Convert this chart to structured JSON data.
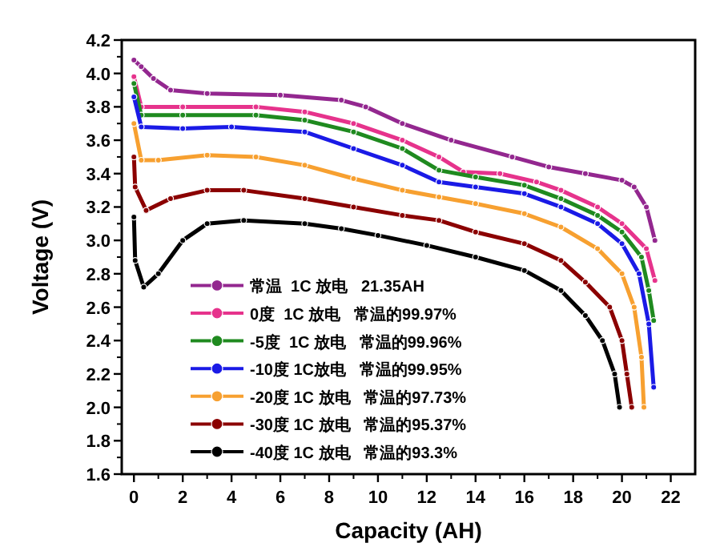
{
  "chart_data": {
    "type": "line",
    "xlabel": "Capacity (AH)",
    "ylabel": "Voltage (V)",
    "xlim": [
      -0.5,
      23
    ],
    "ylim": [
      1.6,
      4.2
    ],
    "xticks": [
      0,
      2,
      4,
      6,
      8,
      10,
      12,
      14,
      16,
      18,
      20,
      22
    ],
    "yticks": [
      {
        "value": 1.6,
        "label": "1.6"
      },
      {
        "value": 1.8,
        "label": "1.8"
      },
      {
        "value": 2,
        "label": "2.0"
      },
      {
        "value": 2.2,
        "label": "2.2"
      },
      {
        "value": 2.4,
        "label": "2.4"
      },
      {
        "value": 2.6,
        "label": "2.6"
      },
      {
        "value": 2.8,
        "label": "2.8"
      },
      {
        "value": 3,
        "label": "3.0"
      },
      {
        "value": 3.2,
        "label": "3.2"
      },
      {
        "value": 3.4,
        "label": "3.4"
      },
      {
        "value": 3.6,
        "label": "3.6"
      },
      {
        "value": 3.8,
        "label": "3.8"
      },
      {
        "value": 4,
        "label": "4.0"
      },
      {
        "value": 4.2,
        "label": "4.2"
      }
    ],
    "legend": "bottom left",
    "marker": "circle",
    "series": [
      {
        "name": "常温  1C 放电   21.35AH",
        "color": "#93278f",
        "x": [
          0,
          0.3,
          0.8,
          1.5,
          3,
          6,
          8.5,
          9.5,
          11,
          13,
          15.5,
          17,
          18.5,
          20,
          20.5,
          21,
          21.35
        ],
        "values": [
          4.08,
          4.04,
          3.97,
          3.9,
          3.88,
          3.87,
          3.84,
          3.8,
          3.7,
          3.6,
          3.5,
          3.44,
          3.4,
          3.36,
          3.32,
          3.2,
          3.0
        ]
      },
      {
        "name": "0度  1C 放电   常温的99.97%",
        "color": "#e6338c",
        "x": [
          0,
          0.3,
          2,
          5,
          7,
          9,
          11,
          12.5,
          13.5,
          15,
          16.5,
          17.5,
          19,
          20,
          21,
          21.35
        ],
        "values": [
          3.98,
          3.8,
          3.8,
          3.8,
          3.77,
          3.7,
          3.6,
          3.5,
          3.41,
          3.4,
          3.35,
          3.3,
          3.2,
          3.1,
          2.95,
          2.76
        ]
      },
      {
        "name": "-5度  1C 放电   常温的99.96%",
        "color": "#1f8a1f",
        "x": [
          0,
          0.3,
          2,
          5,
          7,
          9,
          11,
          12.5,
          14,
          16,
          17.5,
          19,
          20,
          20.8,
          21.1,
          21.3
        ],
        "values": [
          3.94,
          3.75,
          3.75,
          3.75,
          3.72,
          3.65,
          3.55,
          3.42,
          3.38,
          3.33,
          3.25,
          3.15,
          3.05,
          2.9,
          2.7,
          2.52
        ]
      },
      {
        "name": "-10度 1C放电   常温的99.95%",
        "color": "#1a1ae6",
        "x": [
          0,
          0.3,
          2,
          4,
          7,
          9,
          11,
          12.5,
          14,
          16,
          17.5,
          19,
          20,
          20.7,
          21.1,
          21.3
        ],
        "values": [
          3.86,
          3.68,
          3.67,
          3.68,
          3.65,
          3.55,
          3.45,
          3.35,
          3.32,
          3.28,
          3.2,
          3.1,
          2.98,
          2.8,
          2.5,
          2.12
        ]
      },
      {
        "name": "-20度 1C 放电   常温的97.73%",
        "color": "#f7a030",
        "x": [
          0,
          0.3,
          1,
          3,
          5,
          7,
          9,
          11,
          12.5,
          14,
          16,
          17.5,
          19,
          20,
          20.5,
          20.8,
          20.9
        ],
        "values": [
          3.7,
          3.48,
          3.48,
          3.51,
          3.5,
          3.45,
          3.37,
          3.3,
          3.26,
          3.22,
          3.16,
          3.08,
          2.95,
          2.8,
          2.6,
          2.3,
          2.0
        ]
      },
      {
        "name": "-30度 1C 放电   常温的95.37%",
        "color": "#8b0000",
        "x": [
          0,
          0.05,
          0.5,
          1.5,
          3,
          4.5,
          7,
          9,
          11,
          12.5,
          14,
          16,
          17.5,
          18.5,
          19.5,
          20,
          20.2,
          20.4
        ],
        "values": [
          3.5,
          3.32,
          3.18,
          3.25,
          3.3,
          3.3,
          3.25,
          3.2,
          3.15,
          3.12,
          3.05,
          2.98,
          2.88,
          2.75,
          2.6,
          2.4,
          2.2,
          2.0
        ]
      },
      {
        "name": "-40度 1C 放电   常温的93.3%",
        "color": "#000000",
        "x": [
          0,
          0.05,
          0.4,
          1,
          2,
          3,
          4.5,
          7,
          8.5,
          10,
          12,
          14,
          16,
          17.5,
          18.5,
          19.2,
          19.7,
          19.9
        ],
        "values": [
          3.14,
          2.88,
          2.72,
          2.8,
          3.0,
          3.1,
          3.12,
          3.1,
          3.07,
          3.03,
          2.97,
          2.9,
          2.82,
          2.7,
          2.55,
          2.4,
          2.2,
          2.0
        ]
      }
    ]
  }
}
